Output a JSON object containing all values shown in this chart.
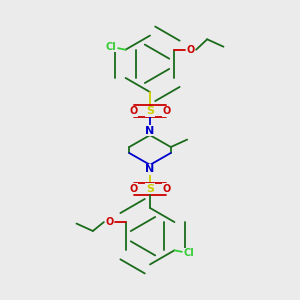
{
  "bg_color": "#ebebeb",
  "atom_colors": {
    "C": "#1a6b1a",
    "N": "#0000cc",
    "O": "#cc0000",
    "S": "#cccc00",
    "Cl": "#33cc33"
  },
  "bond_color": "#1a6b1a",
  "figsize": [
    3.0,
    3.0
  ],
  "dpi": 100,
  "scale": 1.0
}
